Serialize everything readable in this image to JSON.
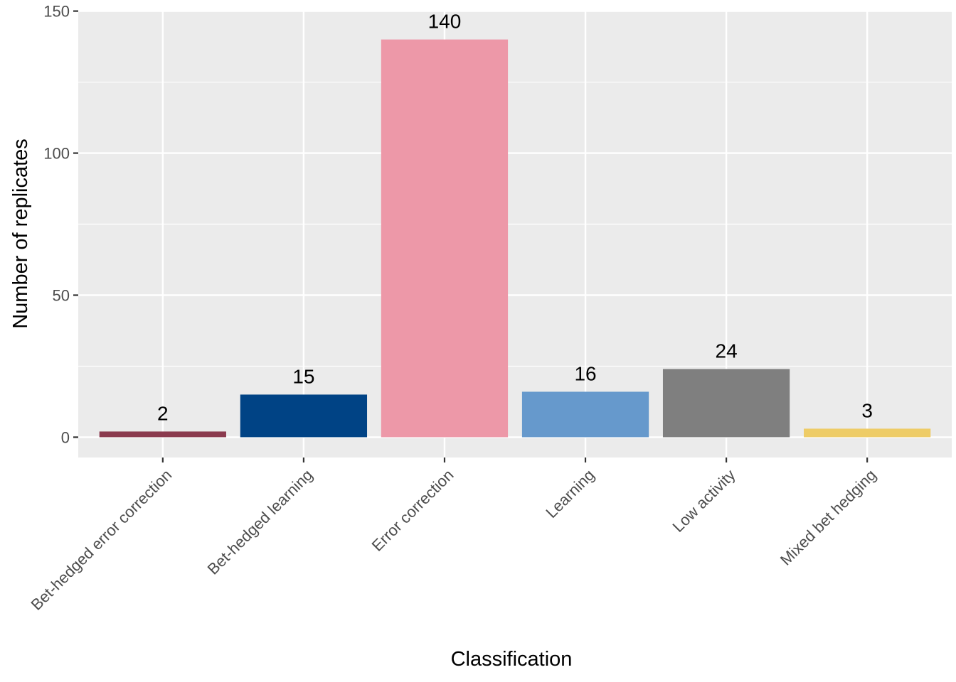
{
  "chart_data": {
    "type": "bar",
    "title": "",
    "xlabel": "Classification",
    "ylabel": "Number of replicates",
    "categories": [
      "Bet-hedged error correction",
      "Bet-hedged learning",
      "Error correction",
      "Learning",
      "Low activity",
      "Mixed bet hedging"
    ],
    "values": [
      2,
      15,
      140,
      16,
      24,
      3
    ],
    "data_labels": [
      "2",
      "15",
      "140",
      "16",
      "24",
      "3"
    ],
    "colors": [
      "#8b3a4e",
      "#004385",
      "#ed98a8",
      "#6699cc",
      "#7f7f7f",
      "#eecc66"
    ],
    "ylim": [
      -7.15,
      150.15
    ],
    "y_ticks": [
      0,
      50,
      100,
      150
    ],
    "y_tick_labels": [
      "0",
      "50",
      "100",
      "150"
    ],
    "grid": true,
    "legend": "none",
    "panel_background": "#ebebeb",
    "grid_color": "#ffffff"
  }
}
